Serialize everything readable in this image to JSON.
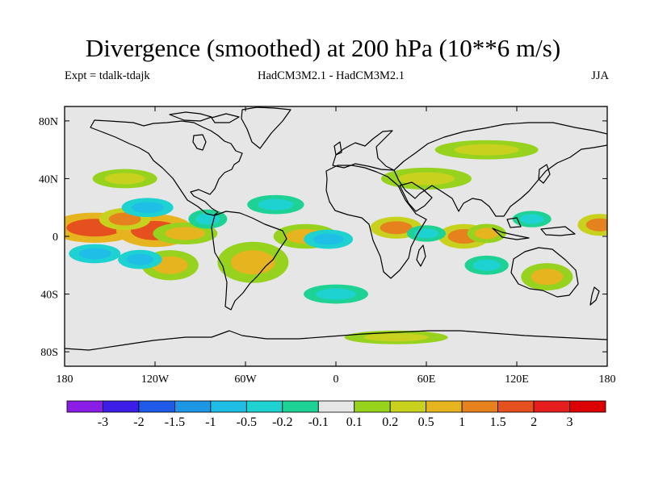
{
  "header": {
    "title": "Divergence (smoothed) at 200 hPa (10**6 m/s)",
    "expt": "Expt = tdalk-tdajk",
    "model": "HadCM3M2.1 - HadCM3M2.1",
    "season": "JJA"
  },
  "map": {
    "projection": "cylindrical equidistant",
    "lon_range": [
      -180,
      180
    ],
    "lat_range": [
      -90,
      90
    ],
    "background_color": "#e6e6e6",
    "xticks": [
      {
        "lon": -180,
        "label": "180"
      },
      {
        "lon": -120,
        "label": "120W"
      },
      {
        "lon": -60,
        "label": "60W"
      },
      {
        "lon": 0,
        "label": "0"
      },
      {
        "lon": 60,
        "label": "60E"
      },
      {
        "lon": 120,
        "label": "120E"
      },
      {
        "lon": 180,
        "label": "180"
      }
    ],
    "yticks": [
      {
        "lat": 80,
        "label": "80N"
      },
      {
        "lat": 40,
        "label": "40N"
      },
      {
        "lat": 0,
        "label": "0"
      },
      {
        "lat": -40,
        "label": "40S"
      },
      {
        "lat": -80,
        "label": "80S"
      }
    ]
  },
  "chart_data": {
    "type": "heatmap",
    "title": "Divergence (smoothed) at 200 hPa (10**6 m/s)",
    "units": "10**6 m/s",
    "fields": [
      {
        "lon": -160,
        "lat": 6,
        "value": 1.5
      },
      {
        "lon": -120,
        "lat": 4,
        "value": 1.5
      },
      {
        "lon": -140,
        "lat": 12,
        "value": 1.0
      },
      {
        "lon": -100,
        "lat": 2,
        "value": 0.5
      },
      {
        "lon": -55,
        "lat": -18,
        "value": 0.5
      },
      {
        "lon": -20,
        "lat": 0,
        "value": 0.5
      },
      {
        "lon": 40,
        "lat": 6,
        "value": 1.0
      },
      {
        "lon": 85,
        "lat": 0,
        "value": 1.0
      },
      {
        "lon": 100,
        "lat": 2,
        "value": 0.5
      },
      {
        "lon": 175,
        "lat": 8,
        "value": 1.0
      },
      {
        "lon": 140,
        "lat": -28,
        "value": 0.5
      },
      {
        "lon": -110,
        "lat": -20,
        "value": 0.5
      },
      {
        "lon": -160,
        "lat": -12,
        "value": -1.0
      },
      {
        "lon": -130,
        "lat": -16,
        "value": -1.0
      },
      {
        "lon": -125,
        "lat": 20,
        "value": -1.0
      },
      {
        "lon": -85,
        "lat": 12,
        "value": -0.5
      },
      {
        "lon": -5,
        "lat": -2,
        "value": -1.0
      },
      {
        "lon": 60,
        "lat": 2,
        "value": -0.5
      },
      {
        "lon": 130,
        "lat": 12,
        "value": -0.5
      },
      {
        "lon": 100,
        "lat": -20,
        "value": -0.5
      },
      {
        "lon": -40,
        "lat": 22,
        "value": -0.5
      },
      {
        "lon": 0,
        "lat": -40,
        "value": -0.5
      },
      {
        "lon": 60,
        "lat": 40,
        "value": 0.2
      },
      {
        "lon": -140,
        "lat": 40,
        "value": 0.2
      },
      {
        "lon": 100,
        "lat": 60,
        "value": 0.2
      },
      {
        "lon": 40,
        "lat": -70,
        "value": 0.2
      }
    ]
  },
  "colorbar": {
    "labels": [
      "-3",
      "-2",
      "-1.5",
      "-1",
      "-0.5",
      "-0.2",
      "-0.1",
      "0.1",
      "0.2",
      "0.5",
      "1",
      "1.5",
      "2",
      "3"
    ],
    "colors": [
      "#8b1ee6",
      "#3c1ee6",
      "#1e5ae6",
      "#1e96e6",
      "#1ebee6",
      "#1ed2d2",
      "#1ed296",
      "#e6e6e6",
      "#96d21e",
      "#c8d21e",
      "#e6b41e",
      "#e6821e",
      "#e6501e",
      "#e61e1e",
      "#dc0000"
    ]
  }
}
